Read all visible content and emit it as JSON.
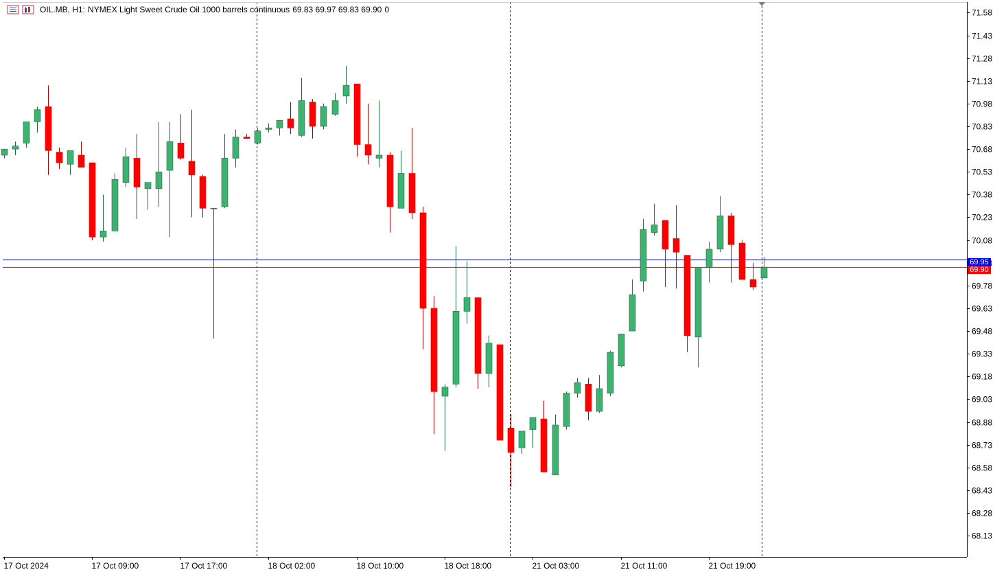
{
  "header": {
    "symbol": "OIL.MB, H1:",
    "description": "NYMEX Light Sweet Crude Oil 1000 barrels continuous",
    "ohlc": "69.83 69.97 69.83 69.90",
    "volume": "0",
    "icons": [
      "list-icon",
      "chart-icon"
    ]
  },
  "price_tags": {
    "ask": "69.95",
    "bid": "69.90"
  },
  "colors": {
    "bull": "#3cb371",
    "bear": "#ff0000",
    "ask_line": "#0000ff",
    "bid_line": "#b22222",
    "grid_dash": "#000000",
    "axis": "#000000"
  },
  "chart_data": {
    "type": "candlestick",
    "symbol": "OIL.MB",
    "timeframe": "H1",
    "ylim": [
      67.99,
      71.65
    ],
    "y_ticks": [
      "71.58",
      "71.43",
      "71.28",
      "71.13",
      "70.98",
      "70.83",
      "70.68",
      "70.53",
      "70.38",
      "70.23",
      "70.08",
      "69.93",
      "69.78",
      "69.63",
      "69.48",
      "69.33",
      "69.18",
      "69.03",
      "68.88",
      "68.73",
      "68.58",
      "68.43",
      "68.28",
      "68.13"
    ],
    "x_ticks": [
      {
        "label": "17 Oct 2024",
        "index": 0
      },
      {
        "label": "17 Oct 09:00",
        "index": 8
      },
      {
        "label": "17 Oct 17:00",
        "index": 16
      },
      {
        "label": "18 Oct 02:00",
        "index": 24
      },
      {
        "label": "18 Oct 10:00",
        "index": 32
      },
      {
        "label": "18 Oct 18:00",
        "index": 40
      },
      {
        "label": "21 Oct 03:00",
        "index": 48
      },
      {
        "label": "21 Oct 11:00",
        "index": 56
      },
      {
        "label": "21 Oct 19:00",
        "index": 64
      }
    ],
    "period_separators": [
      22.9,
      45.9,
      68.8
    ],
    "ask": 69.95,
    "bid": 69.9,
    "candles": [
      [
        70.64,
        70.68,
        70.62,
        70.68
      ],
      [
        70.68,
        70.73,
        70.64,
        70.7
      ],
      [
        70.72,
        70.86,
        70.69,
        70.86
      ],
      [
        70.86,
        70.96,
        70.79,
        70.94
      ],
      [
        70.96,
        71.1,
        70.51,
        70.67
      ],
      [
        70.66,
        70.69,
        70.55,
        70.59
      ],
      [
        70.58,
        70.67,
        70.51,
        70.67
      ],
      [
        70.64,
        70.73,
        70.56,
        70.56
      ],
      [
        70.59,
        70.59,
        70.08,
        70.1
      ],
      [
        70.1,
        70.38,
        70.07,
        70.14
      ],
      [
        70.14,
        70.52,
        70.14,
        70.48
      ],
      [
        70.46,
        70.69,
        70.43,
        70.63
      ],
      [
        70.62,
        70.78,
        70.22,
        70.43
      ],
      [
        70.42,
        70.46,
        70.28,
        70.46
      ],
      [
        70.42,
        70.86,
        70.3,
        70.53
      ],
      [
        70.54,
        70.86,
        70.1,
        70.73
      ],
      [
        70.72,
        70.91,
        70.61,
        70.62
      ],
      [
        70.6,
        70.94,
        70.23,
        70.51
      ],
      [
        70.5,
        70.51,
        70.23,
        70.29
      ],
      [
        70.29,
        70.29,
        69.43,
        70.29
      ],
      [
        70.3,
        70.78,
        70.29,
        70.62
      ],
      [
        70.62,
        70.81,
        70.56,
        70.76
      ],
      [
        70.76,
        70.78,
        70.75,
        70.75
      ],
      [
        70.72,
        70.82,
        70.71,
        70.8
      ],
      [
        70.81,
        70.85,
        70.79,
        70.82
      ],
      [
        70.82,
        70.87,
        70.77,
        70.87
      ],
      [
        70.88,
        70.99,
        70.78,
        70.82
      ],
      [
        70.77,
        71.15,
        70.76,
        71.0
      ],
      [
        70.99,
        71.01,
        70.75,
        70.83
      ],
      [
        70.83,
        70.98,
        70.81,
        70.96
      ],
      [
        70.91,
        71.05,
        70.9,
        71.0
      ],
      [
        71.03,
        71.23,
        70.98,
        71.1
      ],
      [
        71.11,
        71.11,
        70.63,
        70.71
      ],
      [
        70.71,
        70.98,
        70.58,
        70.64
      ],
      [
        70.62,
        71.0,
        70.56,
        70.64
      ],
      [
        70.64,
        70.66,
        70.13,
        70.3
      ],
      [
        70.29,
        70.67,
        70.29,
        70.52
      ],
      [
        70.52,
        70.82,
        70.22,
        70.26
      ],
      [
        70.26,
        70.3,
        69.36,
        69.63
      ],
      [
        69.63,
        69.71,
        68.8,
        69.08
      ],
      [
        69.05,
        69.13,
        68.69,
        69.11
      ],
      [
        69.13,
        70.04,
        69.11,
        69.61
      ],
      [
        69.61,
        69.94,
        69.53,
        69.7
      ],
      [
        69.7,
        69.7,
        69.1,
        69.2
      ],
      [
        69.2,
        69.45,
        69.11,
        69.4
      ],
      [
        69.39,
        69.39,
        68.77,
        68.76
      ],
      [
        68.84,
        68.93,
        68.45,
        68.68
      ],
      [
        68.71,
        68.82,
        68.67,
        68.82
      ],
      [
        68.83,
        68.91,
        68.71,
        68.91
      ],
      [
        68.9,
        69.02,
        68.55,
        68.55
      ],
      [
        68.53,
        68.93,
        68.53,
        68.86
      ],
      [
        68.85,
        69.08,
        68.83,
        69.07
      ],
      [
        69.07,
        69.17,
        69.04,
        69.14
      ],
      [
        69.13,
        69.17,
        68.89,
        68.95
      ],
      [
        68.95,
        69.19,
        68.94,
        69.1
      ],
      [
        69.07,
        69.35,
        69.05,
        69.34
      ],
      [
        69.25,
        69.46,
        69.24,
        69.46
      ],
      [
        69.48,
        69.82,
        69.48,
        69.72
      ],
      [
        69.81,
        70.22,
        69.74,
        70.15
      ],
      [
        70.13,
        70.32,
        70.11,
        70.18
      ],
      [
        70.21,
        70.21,
        69.77,
        70.02
      ],
      [
        70.09,
        70.31,
        69.76,
        70.0
      ],
      [
        69.98,
        69.98,
        69.34,
        69.45
      ],
      [
        69.44,
        69.9,
        69.24,
        69.9
      ],
      [
        69.9,
        70.07,
        69.8,
        70.02
      ],
      [
        70.02,
        70.37,
        70.0,
        70.24
      ],
      [
        70.24,
        70.26,
        69.8,
        70.05
      ],
      [
        70.06,
        70.08,
        69.83,
        69.82
      ],
      [
        69.82,
        69.93,
        69.75,
        69.77
      ],
      [
        69.83,
        69.97,
        69.83,
        69.9
      ]
    ]
  }
}
